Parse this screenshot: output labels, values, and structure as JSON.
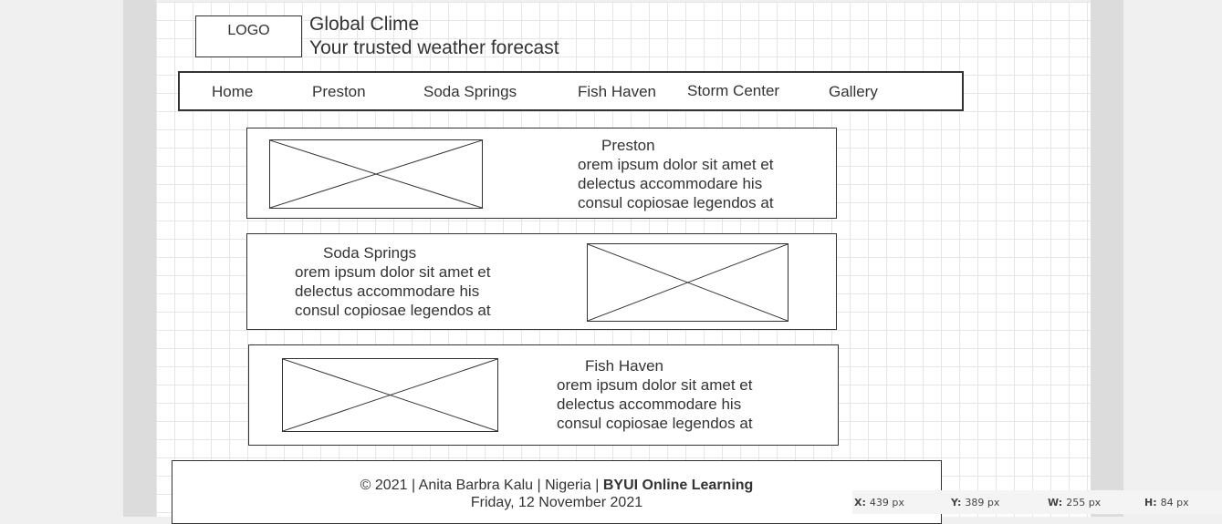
{
  "header": {
    "logo_label": "LOGO",
    "title": "Global Clime",
    "subtitle": "Your trusted weather forecast"
  },
  "nav": {
    "items": [
      {
        "label": "Home"
      },
      {
        "label": "Preston"
      },
      {
        "label": "Soda Springs"
      },
      {
        "label": "Fish Haven"
      },
      {
        "label": "Storm Center"
      },
      {
        "label": "Gallery"
      }
    ]
  },
  "cards": [
    {
      "title": "Preston",
      "lines": [
        "orem ipsum dolor sit amet et",
        "delectus accommodare his",
        "consul copiosae legendos at"
      ]
    },
    {
      "title": "Soda Springs",
      "lines": [
        "orem ipsum dolor sit amet et",
        "delectus accommodare his",
        "consul copiosae legendos at"
      ]
    },
    {
      "title": "Fish Haven",
      "lines": [
        "orem ipsum dolor sit amet et",
        "delectus accommodare his",
        "consul copiosae legendos at"
      ]
    }
  ],
  "footer": {
    "copyright": "© 2021 | Anita Barbra Kalu | Nigeria | ",
    "org": "BYUI Online Learning",
    "date": "Friday, 12 November 2021"
  },
  "statusbar": {
    "x_label": "X:",
    "x_value": "439 px",
    "y_label": "Y:",
    "y_value": "389 px",
    "w_label": "W:",
    "w_value": "255 px",
    "h_label": "H:",
    "h_value": "84 px"
  }
}
